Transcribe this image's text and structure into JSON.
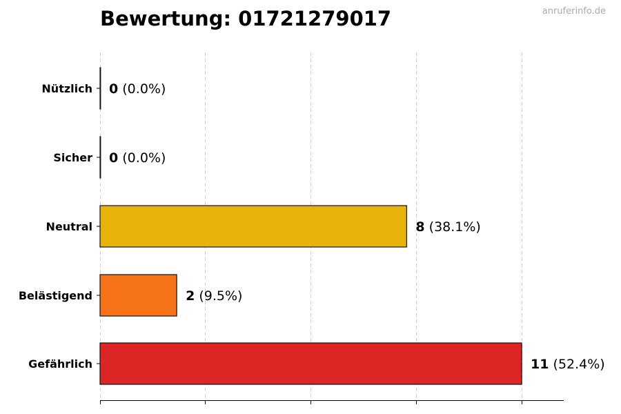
{
  "header": {
    "title": "Bewertung: 01721279017",
    "watermark": "anruferinfo.de"
  },
  "chart_data": {
    "type": "bar",
    "orientation": "horizontal",
    "title": "Bewertung: 01721279017",
    "xlabel": "",
    "ylabel": "",
    "categories": [
      "Nützlich",
      "Sicher",
      "Neutral",
      "Belästigend",
      "Gefährlich"
    ],
    "values": [
      0,
      0,
      8,
      2,
      11
    ],
    "percentages": [
      "0.0%",
      "0.0%",
      "38.1%",
      "9.5%",
      "52.4%"
    ],
    "value_labels": [
      "0 (0.0%)",
      "0 (0.0%)",
      "8 (38.1%)",
      "2 (9.5%)",
      "11 (52.4%)"
    ],
    "colors": [
      "#2e9e4f",
      "#3a7bd5",
      "#e8b30b",
      "#f67417",
      "#dc2626"
    ],
    "xlim": [
      0,
      12.1
    ],
    "grid": true,
    "legend": null
  },
  "bars": [
    {
      "label": "Nützlich",
      "count": "0",
      "pct": "(0.0%)"
    },
    {
      "label": "Sicher",
      "count": "0",
      "pct": "(0.0%)"
    },
    {
      "label": "Neutral",
      "count": "8",
      "pct": "(38.1%)"
    },
    {
      "label": "Belästigend",
      "count": "2",
      "pct": "(9.5%)"
    },
    {
      "label": "Gefährlich",
      "count": "11",
      "pct": "(52.4%)"
    }
  ]
}
